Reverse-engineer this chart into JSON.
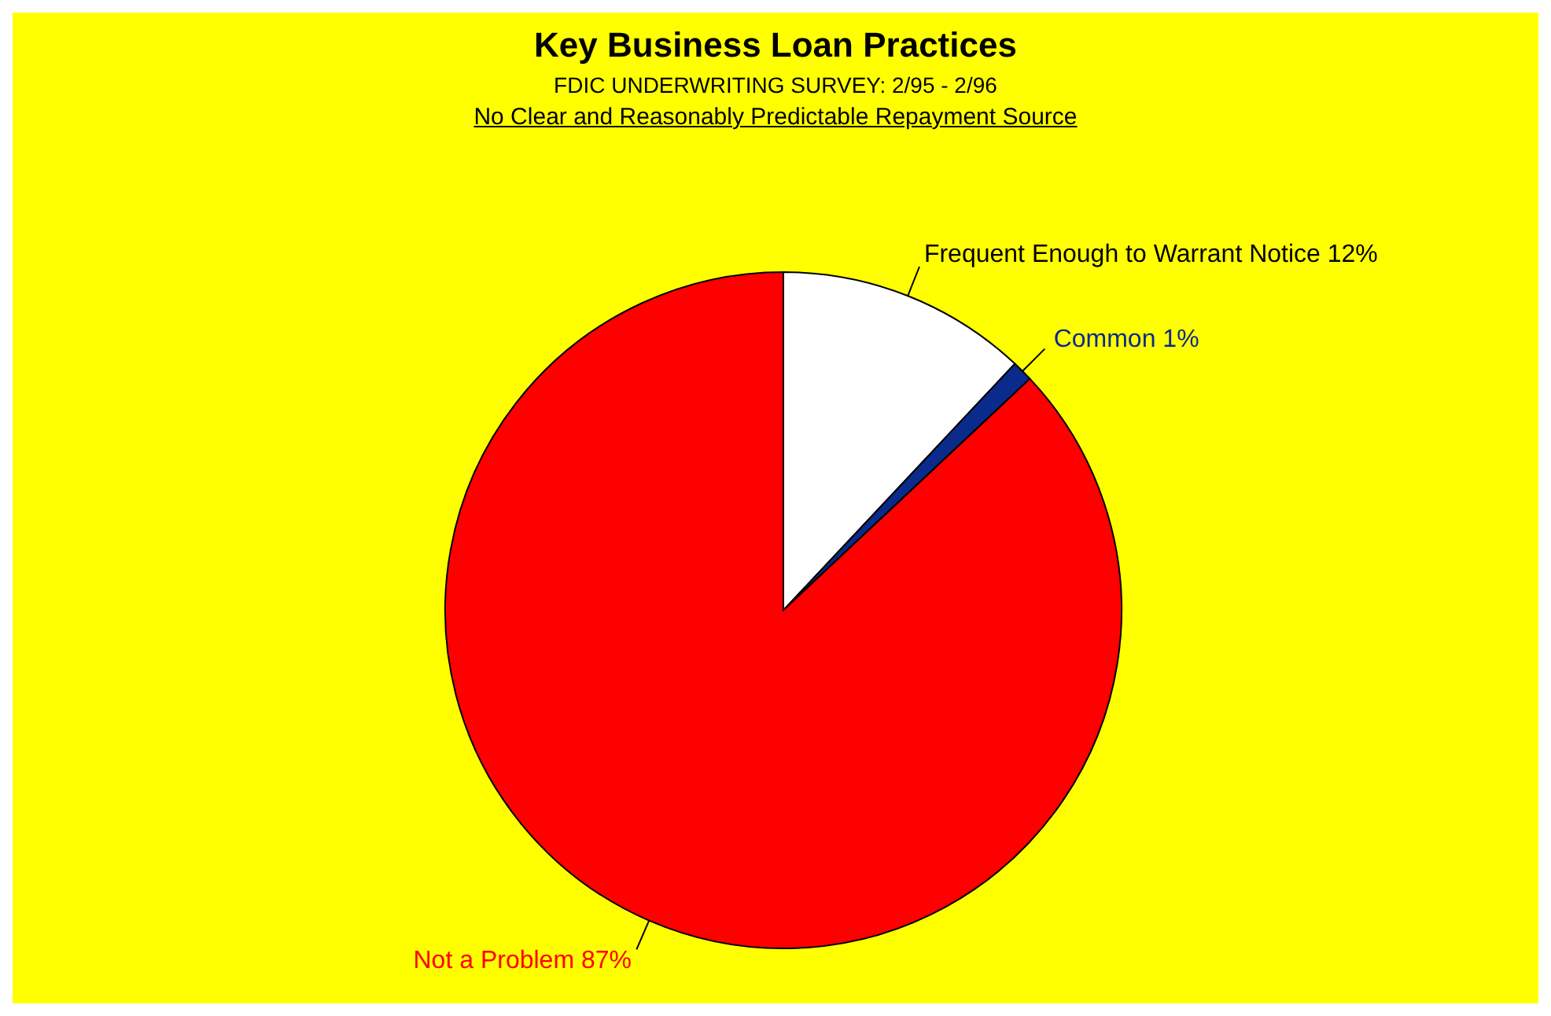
{
  "chart_data": {
    "type": "pie",
    "title": "Key Business Loan Practices",
    "subtitle": "FDIC UNDERWRITING SURVEY: 2/95 - 2/96",
    "annotations": [
      "No Clear and Reasonably Predictable Repayment Source"
    ],
    "categories": [
      "Frequent Enough to Warrant Notice",
      "Common",
      "Not a Problem"
    ],
    "values": [
      12,
      1,
      87
    ],
    "value_labels": [
      "12%",
      "1%",
      "87%"
    ],
    "colors": [
      "#ffffff",
      "#0a2a8c",
      "#ff0000"
    ],
    "legend": false
  }
}
